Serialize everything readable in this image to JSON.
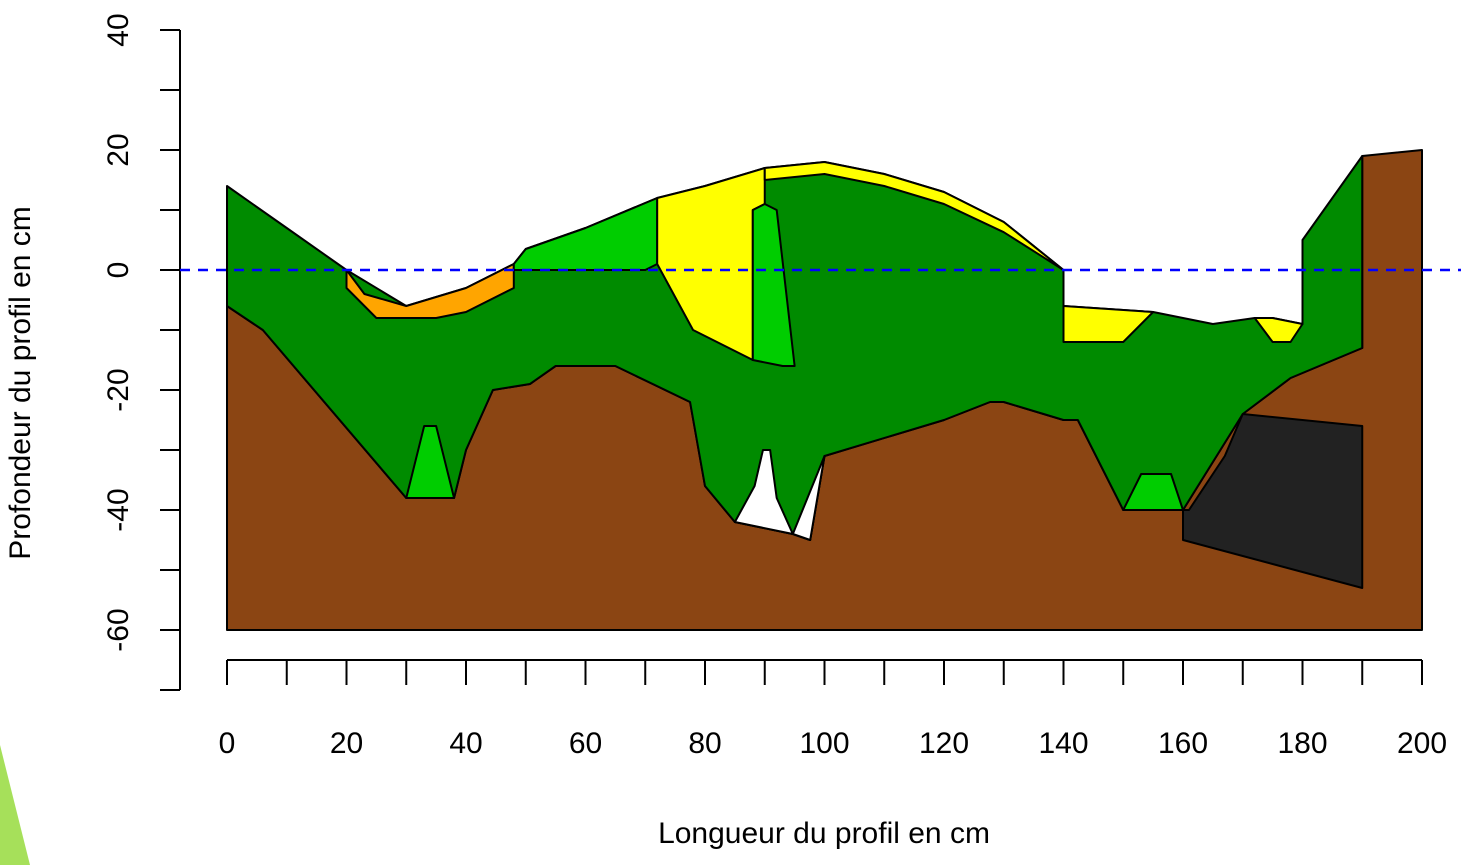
{
  "chart_data": {
    "type": "polygon",
    "xlabel": "Longueur du profil en cm",
    "ylabel": "Profondeur du profil en cm",
    "xlim": [
      0,
      200
    ],
    "ylim": [
      -70,
      40
    ],
    "xticks": [
      0,
      20,
      40,
      60,
      80,
      100,
      120,
      140,
      160,
      180,
      200
    ],
    "xminorticks": [
      10,
      30,
      50,
      70,
      90,
      110,
      130,
      150,
      170,
      190
    ],
    "yticks": [
      -60,
      -40,
      -20,
      0,
      20,
      40
    ],
    "yminorticks": [
      -70,
      -50,
      -30,
      -10,
      10,
      30
    ],
    "hline": {
      "value": 0,
      "color": "#0000ff"
    },
    "series": [
      {
        "color": "#8b4513",
        "x": [
          0,
          0,
          6,
          30,
          38,
          40,
          44.5,
          50.7,
          55,
          65,
          77.5,
          80,
          85,
          94.7,
          97.6,
          100,
          120,
          127.7,
          130,
          140,
          142.4,
          150,
          160,
          170,
          178,
          190,
          190,
          200,
          200
        ],
        "values": [
          -60,
          -6,
          -10,
          -38,
          -38,
          -30,
          -20,
          -19,
          -16,
          -16,
          -22,
          -36,
          -42,
          -44,
          -45,
          -31,
          -25,
          -22,
          -22,
          -25,
          -25,
          -40,
          -40,
          -24,
          -18,
          -13,
          19,
          20,
          -60
        ]
      },
      {
        "color": "#008b00",
        "x": [
          0,
          10,
          20,
          30,
          40,
          48,
          50,
          60,
          72,
          80,
          90,
          100,
          110,
          120,
          130,
          140,
          140,
          155,
          165,
          172,
          175,
          180,
          180,
          190,
          190,
          178,
          170,
          160,
          150,
          142.4,
          140,
          130,
          127.7,
          120,
          100,
          97.6,
          94.7,
          85,
          80,
          77.5,
          65,
          55,
          50.7,
          44.5,
          40,
          38,
          30,
          6,
          0
        ],
        "values": [
          14,
          7,
          0,
          -6,
          -3,
          1,
          3.5,
          7,
          12,
          14,
          17,
          18,
          16,
          13,
          8,
          0,
          -6,
          -7,
          -9,
          -8,
          -8,
          -9,
          5,
          19,
          -13,
          -18,
          -24,
          -40,
          -40,
          -25,
          -25,
          -22,
          -22,
          -25,
          -31,
          -45,
          -44,
          -42,
          -36,
          -22,
          -16,
          -16,
          -19,
          -20,
          -30,
          -38,
          -38,
          -10,
          -6
        ]
      },
      {
        "color": "#ffffff",
        "x": [
          85,
          88.3,
          89.7,
          90.9,
          92,
          94.7
        ],
        "values": [
          -42,
          -36,
          -30,
          -30,
          -38,
          -44
        ]
      },
      {
        "color": "#ffffff",
        "x": [
          94.7,
          100,
          97.6
        ],
        "values": [
          -44,
          -31,
          -45
        ]
      },
      {
        "color": "#00cd00",
        "x": [
          30,
          33,
          35,
          38
        ],
        "values": [
          -38,
          -26,
          -26,
          -38
        ]
      },
      {
        "color": "#ffa500",
        "x": [
          20,
          23,
          30,
          40,
          48,
          48,
          40,
          35,
          25,
          20
        ],
        "values": [
          0,
          -4,
          -6,
          -3,
          1,
          -3,
          -7,
          -8,
          -8,
          -3
        ]
      },
      {
        "color": "#00cd00",
        "x": [
          48,
          50,
          60,
          72,
          72,
          70,
          48
        ],
        "values": [
          1,
          3.5,
          7,
          12,
          1,
          0,
          0
        ]
      },
      {
        "color": "#ffff00",
        "x": [
          72,
          80,
          90,
          90,
          88,
          88,
          78,
          72
        ],
        "values": [
          12,
          14,
          17,
          11,
          10,
          -15,
          -10,
          1
        ]
      },
      {
        "color": "#00cd00",
        "x": [
          88,
          90,
          92,
          95,
          93,
          88
        ],
        "values": [
          10,
          11,
          10,
          -16,
          -16,
          -15
        ]
      },
      {
        "color": "#ffff00",
        "x": [
          90,
          100,
          110,
          120,
          130,
          140,
          130,
          120,
          110,
          100,
          90
        ],
        "values": [
          17,
          18,
          16,
          13,
          8,
          0,
          6.3,
          11,
          14,
          16,
          15
        ]
      },
      {
        "color": "#ffff00",
        "x": [
          140,
          155,
          150,
          140
        ],
        "values": [
          -6,
          -7,
          -12,
          -12
        ]
      },
      {
        "color": "#ffff00",
        "x": [
          172,
          175,
          180,
          178,
          175
        ],
        "values": [
          -8,
          -8,
          -9,
          -12,
          -12
        ]
      },
      {
        "color": "#00cd00",
        "x": [
          150,
          153,
          158,
          160
        ],
        "values": [
          -40,
          -34,
          -34,
          -40
        ]
      },
      {
        "color": "#222222",
        "x": [
          170,
          190,
          190,
          160,
          160,
          161,
          167
        ],
        "values": [
          -24,
          -26,
          -53,
          -45,
          -40,
          -40,
          -31
        ]
      }
    ]
  }
}
